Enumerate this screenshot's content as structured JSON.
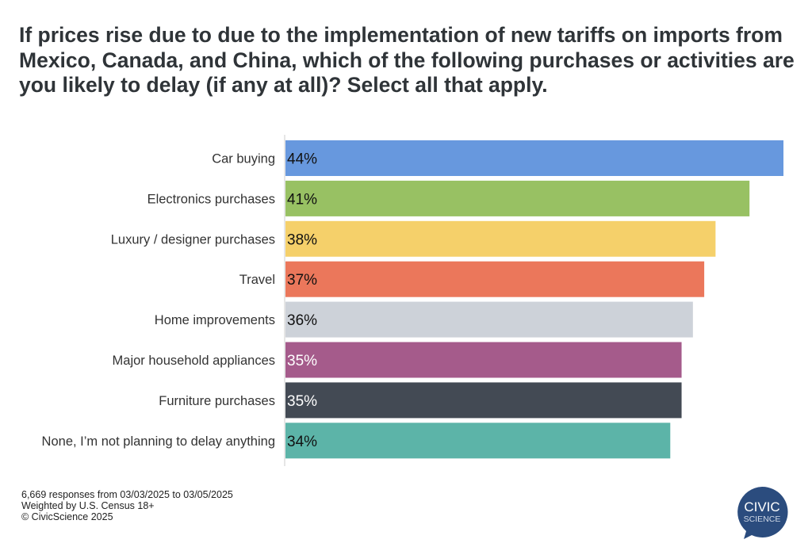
{
  "chart_data": {
    "type": "bar",
    "orientation": "horizontal",
    "title": "If prices rise due to due to the implementation of new tariffs on imports from Mexico, Canada, and China, which of the following purchases or activities are you likely to delay (if any at all)? Select all that apply.",
    "categories": [
      "Car buying",
      "Electronics purchases",
      "Luxury / designer purchases",
      "Travel",
      "Home improvements",
      "Major household appliances",
      "Furniture purchases",
      "None, I’m not planning to delay anything"
    ],
    "values": [
      44,
      41,
      38,
      37,
      36,
      35,
      35,
      34
    ],
    "data_labels": [
      "44%",
      "41%",
      "38%",
      "37%",
      "36%",
      "35%",
      "35%",
      "34%"
    ],
    "colors": [
      "#6798de",
      "#98c163",
      "#f5d06a",
      "#eb775b",
      "#cdd2d9",
      "#a55b8b",
      "#434a54",
      "#5cb4a8"
    ],
    "label_colors": [
      "#111111",
      "#111111",
      "#111111",
      "#111111",
      "#111111",
      "#ffffff",
      "#ffffff",
      "#111111"
    ],
    "xlim": [
      0,
      44
    ],
    "grid": false
  },
  "footer": {
    "line1": "6,669 responses from 03/03/2025 to 03/05/2025",
    "line2": "Weighted by U.S. Census 18+",
    "line3": "© CivicScience 2025"
  },
  "logo": {
    "text1": "CIVIC",
    "text2": "SCIENCE",
    "color": "#2b4c7e"
  }
}
